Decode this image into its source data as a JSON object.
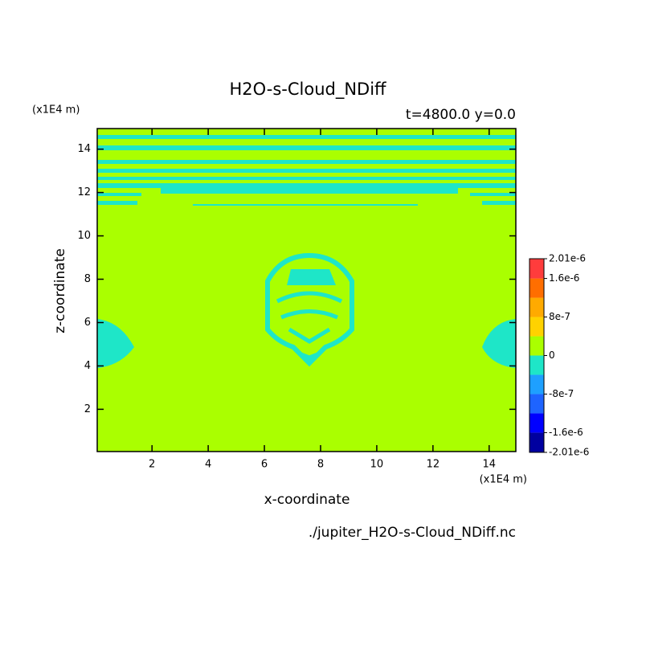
{
  "chart_data": {
    "type": "contour",
    "title": "H2O-s-Cloud_NDiff",
    "subtitle": "t=4800.0 y=0.0",
    "x_label": "x-coordinate",
    "y_label": "z-coordinate",
    "x_unit": "(x1E4 m)",
    "y_unit": "(x1E4 m)",
    "footer": "./jupiter_H2O-s-Cloud_NDiff.nc",
    "xlim": [
      0.05,
      14.95
    ],
    "ylim": [
      0.05,
      14.95
    ],
    "xticks": [
      2,
      4,
      6,
      8,
      10,
      12,
      14
    ],
    "yticks": [
      2,
      4,
      6,
      8,
      10,
      12,
      14
    ],
    "colorbar": {
      "levels": [
        -2.01e-06,
        -1.6e-06,
        -1.2e-06,
        -8e-07,
        -4e-07,
        0,
        4e-07,
        8e-07,
        1.2e-06,
        1.6e-06,
        2.01e-06
      ],
      "colors": [
        "#0000a0",
        "#0000ff",
        "#1e64ff",
        "#1ea0ff",
        "#1ee6c8",
        "#aaff00",
        "#ffd200",
        "#ffaa00",
        "#ff6e00",
        "#ff3c3c"
      ],
      "ticks": [
        {
          "value": -2.01e-06,
          "label": "-2.01e-6"
        },
        {
          "value": -1.6e-06,
          "label": "-1.6e-6"
        },
        {
          "value": -8e-07,
          "label": "-8e-7"
        },
        0,
        {
          "value": 8e-07,
          "label": "8e-7"
        },
        {
          "value": 1.6e-06,
          "label": "1.6e-6"
        },
        {
          "value": 2.01e-06,
          "label": "2.01e-6"
        }
      ]
    }
  }
}
